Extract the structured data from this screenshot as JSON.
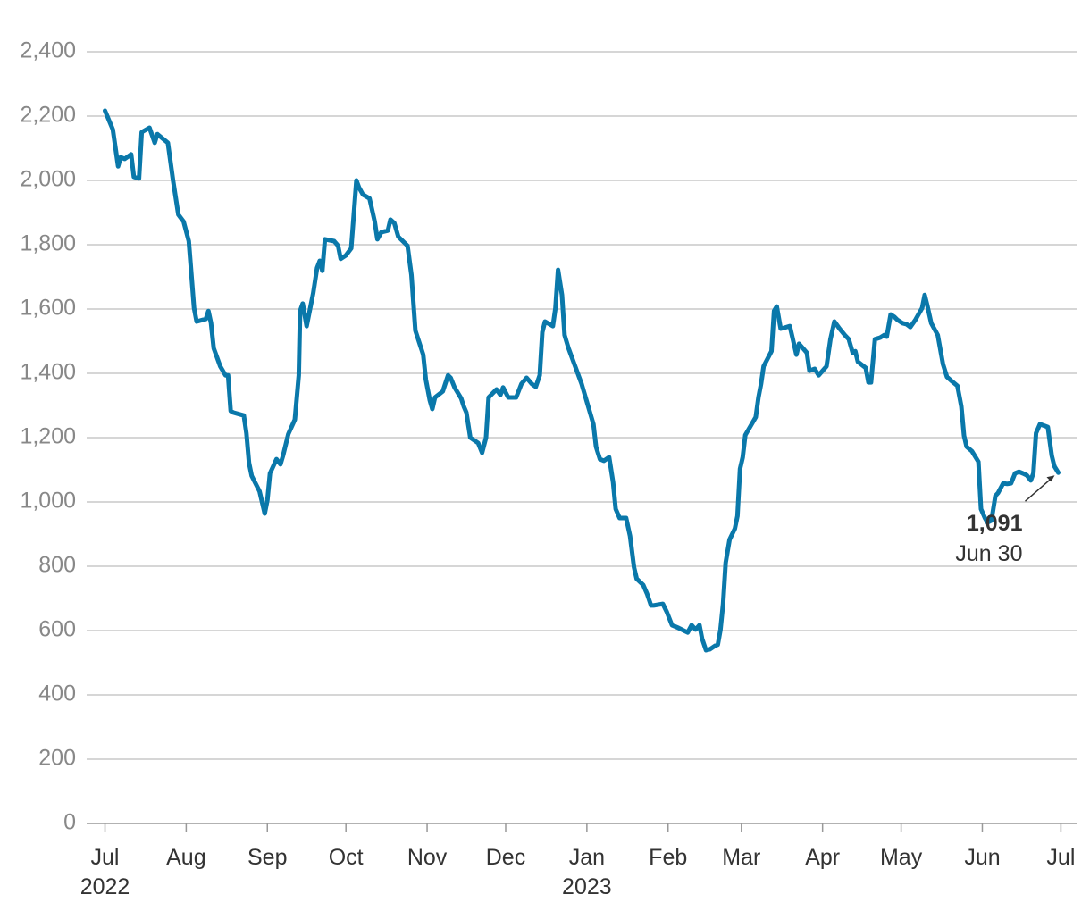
{
  "chart_data": {
    "type": "line",
    "x": [
      0,
      3,
      5,
      6,
      7.5,
      10,
      11,
      13,
      14,
      17,
      19,
      20,
      24,
      26,
      28,
      30,
      32,
      34,
      35,
      38.5,
      39.5,
      40.5,
      41.5,
      44,
      46,
      47,
      48,
      49,
      53,
      54,
      55,
      56,
      59,
      61,
      62,
      63,
      65.5,
      67,
      68,
      70,
      72.5,
      74,
      74.5,
      75.5,
      77,
      79.5,
      81,
      82,
      83,
      84,
      87.5,
      89,
      90,
      92,
      94,
      95,
      96,
      97,
      98.5,
      101,
      103,
      104,
      105.5,
      108,
      109,
      110.5,
      112,
      115.5,
      117,
      118.5,
      121.5,
      122.5,
      124,
      125,
      126,
      129,
      131,
      132,
      133.5,
      136,
      137,
      138,
      139.5,
      142.5,
      144,
      145.5,
      146.5,
      149.5,
      151,
      152,
      154,
      157,
      159,
      161,
      163,
      164.5,
      166,
      167,
      168,
      171,
      172,
      173,
      174.5,
      175.5,
      177,
      182,
      186.5,
      187.5,
      189,
      190.5,
      192.5,
      194,
      195,
      196.5,
      199,
      200.5,
      202,
      203,
      205.5,
      207,
      208.5,
      209.5,
      213,
      214.5,
      216.5,
      219,
      221,
      222.5,
      224,
      225.5,
      227,
      228,
      229.5,
      231,
      233,
      234,
      235,
      236,
      237,
      238.5,
      240.5,
      241.5,
      242.5,
      243.5,
      244.5,
      246.5,
      248.5,
      249.5,
      250.5,
      251.5,
      254.5,
      255.5,
      256.5,
      258,
      259.5,
      261.5,
      262.5,
      264,
      265,
      266.5,
      268,
      269,
      271,
      272.5,
      275.5,
      277,
      278.5,
      280.5,
      282.5,
      284,
      285.5,
      286.5,
      287.5,
      290.5,
      291.5,
      292.5,
      294,
      296,
      297.5,
      298.5,
      300,
      301.5,
      302.5,
      304.5,
      306,
      307.5,
      309.5,
      312,
      313,
      314,
      315.5,
      318,
      320,
      321.5,
      323,
      325.5,
      327,
      328,
      329,
      331,
      333.5,
      334.5,
      336,
      337,
      338.5,
      340,
      341,
      343,
      344.5,
      346,
      347.5,
      349,
      350.5,
      352,
      353.5,
      354.5,
      355.5,
      357,
      360,
      361.5,
      362.5,
      364
    ],
    "series": [
      {
        "color": "#0a78aa",
        "values": [
          2217,
          2158,
          2044,
          2072,
          2067,
          2081,
          2011,
          2006,
          2150,
          2164,
          2117,
          2144,
          2117,
          2000,
          1894,
          1872,
          1811,
          1603,
          1561,
          1569,
          1594,
          1556,
          1478,
          1422,
          1394,
          1394,
          1283,
          1278,
          1269,
          1214,
          1122,
          1081,
          1033,
          964,
          1006,
          1089,
          1133,
          1117,
          1144,
          1211,
          1256,
          1394,
          1594,
          1617,
          1547,
          1650,
          1728,
          1750,
          1719,
          1817,
          1811,
          1797,
          1756,
          1767,
          1789,
          1894,
          2000,
          1978,
          1956,
          1944,
          1872,
          1817,
          1839,
          1844,
          1878,
          1867,
          1825,
          1797,
          1706,
          1533,
          1458,
          1381,
          1317,
          1289,
          1325,
          1344,
          1394,
          1386,
          1356,
          1322,
          1297,
          1278,
          1200,
          1183,
          1153,
          1200,
          1325,
          1350,
          1333,
          1356,
          1325,
          1325,
          1367,
          1386,
          1367,
          1358,
          1394,
          1528,
          1561,
          1547,
          1603,
          1722,
          1644,
          1519,
          1478,
          1367,
          1242,
          1172,
          1133,
          1128,
          1139,
          1061,
          978,
          950,
          950,
          894,
          797,
          761,
          742,
          714,
          678,
          678,
          683,
          658,
          617,
          608,
          600,
          594,
          617,
          603,
          617,
          575,
          539,
          542,
          553,
          556,
          603,
          683,
          811,
          883,
          917,
          956,
          1103,
          1139,
          1208,
          1236,
          1264,
          1325,
          1367,
          1422,
          1469,
          1594,
          1608,
          1539,
          1542,
          1547,
          1511,
          1458,
          1492,
          1478,
          1464,
          1408,
          1414,
          1394,
          1422,
          1506,
          1561,
          1539,
          1519,
          1506,
          1464,
          1469,
          1436,
          1417,
          1372,
          1372,
          1506,
          1511,
          1519,
          1514,
          1583,
          1575,
          1567,
          1556,
          1553,
          1544,
          1567,
          1603,
          1644,
          1611,
          1556,
          1519,
          1428,
          1389,
          1378,
          1361,
          1297,
          1206,
          1172,
          1158,
          1125,
          978,
          950,
          936,
          942,
          1019,
          1028,
          1058,
          1056,
          1058,
          1089,
          1094,
          1089,
          1083,
          1067,
          1089,
          1214,
          1242,
          1233,
          1144,
          1111,
          1091
        ]
      }
    ],
    "xlim": [
      -7,
      371
    ],
    "xticks": [
      {
        "value": 0,
        "label": "Jul\n2022"
      },
      {
        "value": 31,
        "label": "Aug"
      },
      {
        "value": 62,
        "label": "Sep"
      },
      {
        "value": 92,
        "label": "Oct"
      },
      {
        "value": 123,
        "label": "Nov"
      },
      {
        "value": 153,
        "label": "Dec"
      },
      {
        "value": 184,
        "label": "Jan\n2023"
      },
      {
        "value": 215,
        "label": "Feb"
      },
      {
        "value": 243,
        "label": "Mar"
      },
      {
        "value": 274,
        "label": "Apr"
      },
      {
        "value": 304,
        "label": "May"
      },
      {
        "value": 335,
        "label": "Jun"
      },
      {
        "value": 365,
        "label": "Jul"
      }
    ],
    "ylim": [
      0,
      2400
    ],
    "yticks": [
      0,
      200,
      400,
      600,
      800,
      {
        "value": 1000,
        "label": "1,000"
      },
      {
        "value": 1200,
        "label": "1,200"
      },
      {
        "value": 1400,
        "label": "1,400"
      },
      {
        "value": 1600,
        "label": "1,600"
      },
      {
        "value": 1800,
        "label": "1,800"
      },
      {
        "value": 2000,
        "label": "2,000"
      },
      {
        "value": 2200,
        "label": "2,200"
      },
      {
        "value": 2400,
        "label": "2,400"
      }
    ],
    "grid": true,
    "annotation": {
      "x": 364,
      "value": 1091,
      "label": "1,091",
      "date": "Jun 30"
    }
  }
}
